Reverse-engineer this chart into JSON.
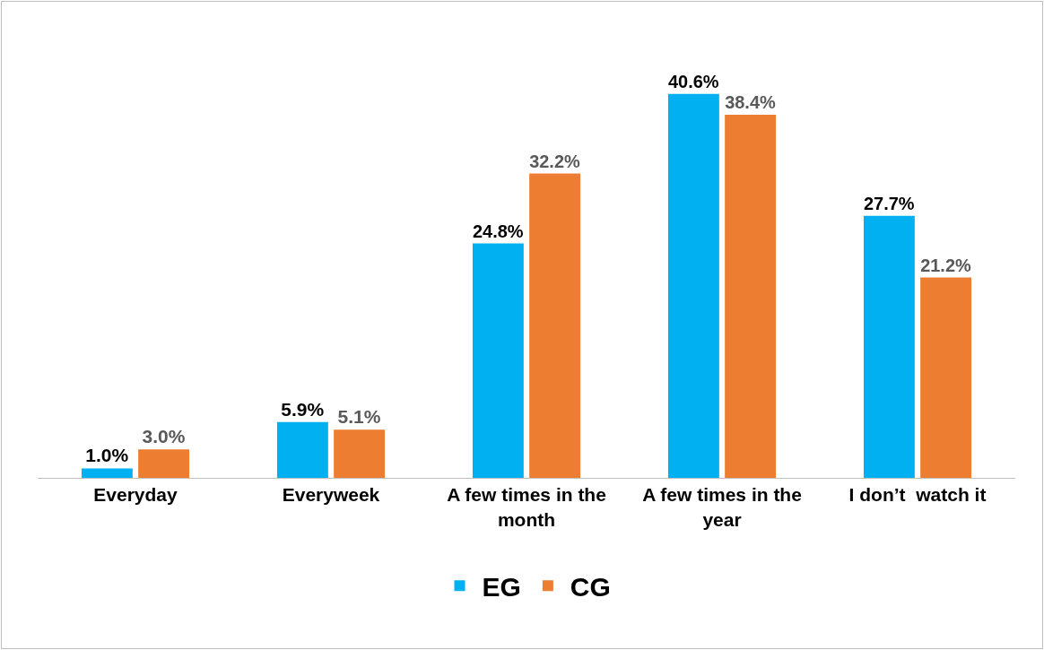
{
  "chart_data": {
    "type": "bar",
    "categories": [
      "Everyday",
      "Everyweek",
      "A few times in the month",
      "A few times in the year",
      "I don’t  watch it"
    ],
    "series": [
      {
        "name": "EG",
        "color": "#00b0f0",
        "values": [
          1.0,
          5.9,
          24.8,
          40.6,
          27.7
        ],
        "value_labels": [
          "1.0%",
          "5.9%",
          "24.8%",
          "40.6%",
          "27.7%"
        ]
      },
      {
        "name": "CG",
        "color": "#ed7d31",
        "values": [
          3.0,
          5.1,
          32.2,
          38.4,
          21.2
        ],
        "value_labels": [
          "3.0%",
          "5.1%",
          "32.2%",
          "38.4%",
          "21.2%"
        ]
      }
    ],
    "legend": "bottom"
  }
}
